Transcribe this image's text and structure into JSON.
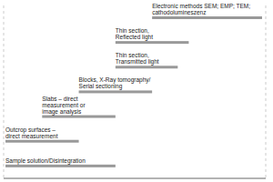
{
  "chart_data": {
    "type": "bar",
    "orientation": "horizontal",
    "categories": [
      "Electronic methods SEM; EMP; TEM;\ncathodolumineszenz",
      "Thin section,\nReflected light",
      "Thin section,\nTransmitted light",
      "Blocks, X-Ray tomography/\nSerial sectioning",
      "Slabs – direct\nmeasurement or\nimage analysis",
      "Outcrop surfaces –\ndirect measurement",
      "Sample solution/Disintegration"
    ],
    "values": [
      [
        4,
        7
      ],
      [
        3,
        5
      ],
      [
        3,
        4.7
      ],
      [
        2,
        4
      ],
      [
        1,
        3
      ],
      [
        0,
        2
      ],
      [
        0,
        3
      ]
    ],
    "color": "#999999",
    "xlim": [
      -0.05,
      7.1
    ],
    "xticks": [
      0,
      1,
      2,
      3,
      4,
      5,
      6,
      7
    ],
    "grid": true,
    "tick_labels": false
  }
}
